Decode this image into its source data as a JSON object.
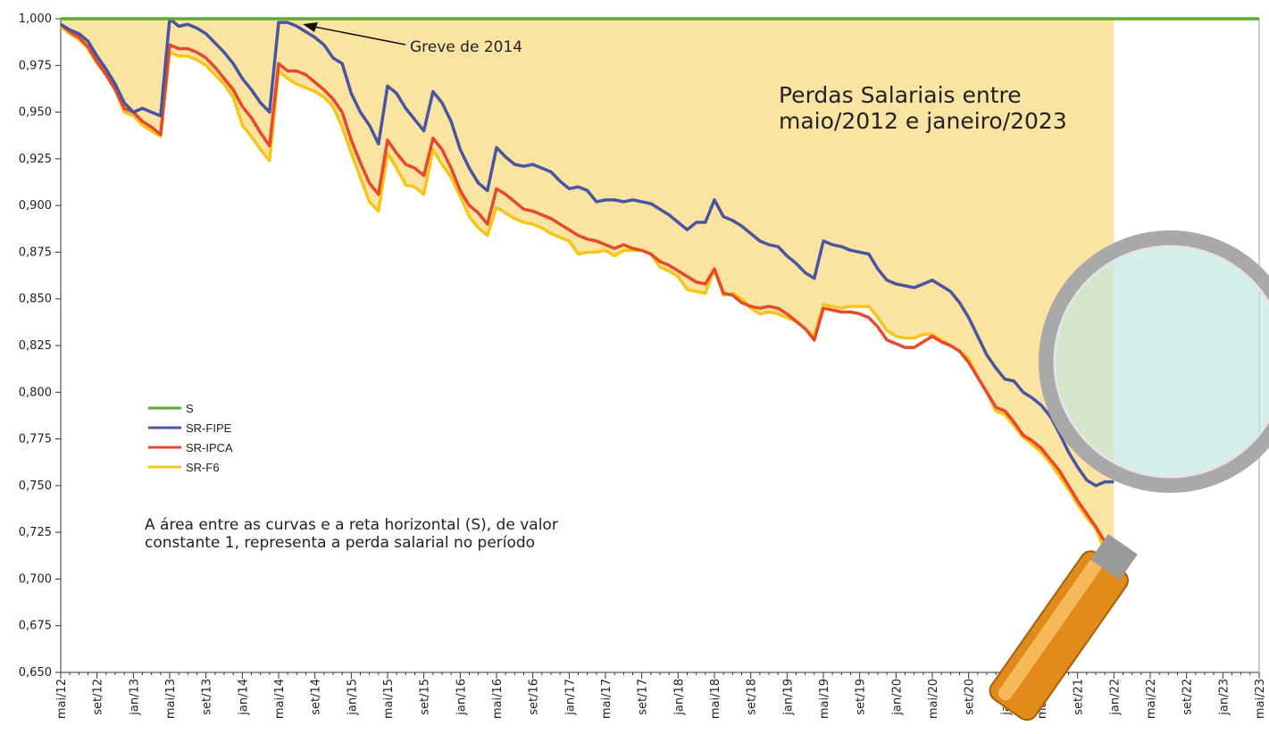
{
  "chart_data": {
    "type": "line",
    "title": [
      "Perdas Salariais entre",
      "maio/2012 e janeiro/2023"
    ],
    "annotations": [
      "Greve de 2014"
    ],
    "note": [
      "A área entre as curvas e a reta horizontal (S), de valor",
      "constante 1, representa a perda salarial no período"
    ],
    "legend": "middle-left",
    "fill_color": "#fbe3a2",
    "categories": [
      "mai/12",
      null,
      null,
      null,
      "set/12",
      null,
      null,
      null,
      "jan/13",
      null,
      null,
      null,
      "mai/13",
      null,
      null,
      null,
      "set/13",
      null,
      null,
      null,
      "jan/14",
      null,
      null,
      null,
      "mai/14",
      null,
      null,
      null,
      "set/14",
      null,
      null,
      null,
      "jan/15",
      null,
      null,
      null,
      "mai/15",
      null,
      null,
      null,
      "set/15",
      null,
      null,
      null,
      "jan/16",
      null,
      null,
      null,
      "mai/16",
      null,
      null,
      null,
      "set/16",
      null,
      null,
      null,
      "jan/17",
      null,
      null,
      null,
      "mai/17",
      null,
      null,
      null,
      "set/17",
      null,
      null,
      null,
      "jan/18",
      null,
      null,
      null,
      "mai/18",
      null,
      null,
      null,
      "set/18",
      null,
      null,
      null,
      "jan/19",
      null,
      null,
      null,
      "mai/19",
      null,
      null,
      null,
      "set/19",
      null,
      null,
      null,
      "jan/20",
      null,
      null,
      null,
      "mai/20",
      null,
      null,
      null,
      "set/20",
      null,
      null,
      null,
      "jan/21",
      null,
      null,
      null,
      "mai/21",
      null,
      null,
      null,
      "set/21",
      null,
      null,
      null,
      "jan/22",
      null,
      null,
      null,
      "mai/22",
      null,
      null,
      null,
      "set/22",
      null,
      null,
      null,
      "jan/23",
      null,
      null,
      null,
      "mai/23"
    ],
    "ylim": [
      0.65,
      1.0
    ],
    "yticks": [
      {
        "value": 0.65,
        "label": "0,650"
      },
      {
        "value": 0.675,
        "label": "0,675"
      },
      {
        "value": 0.7,
        "label": "0,700"
      },
      {
        "value": 0.725,
        "label": "0,725"
      },
      {
        "value": 0.75,
        "label": "0,750"
      },
      {
        "value": 0.775,
        "label": "0,775"
      },
      {
        "value": 0.8,
        "label": "0,800"
      },
      {
        "value": 0.825,
        "label": "0,825"
      },
      {
        "value": 0.85,
        "label": "0,850"
      },
      {
        "value": 0.875,
        "label": "0,875"
      },
      {
        "value": 0.9,
        "label": "0,900"
      },
      {
        "value": 0.925,
        "label": "0,925"
      },
      {
        "value": 0.95,
        "label": "0,950"
      },
      {
        "value": 0.975,
        "label": "0,975"
      },
      {
        "value": 1.0,
        "label": "1,000"
      }
    ],
    "series": [
      {
        "name": "S",
        "color": "#5aab2e",
        "values": [
          1,
          1,
          1,
          1,
          1,
          1,
          1,
          1,
          1,
          1,
          1,
          1,
          1,
          1,
          1,
          1,
          1,
          1,
          1,
          1,
          1,
          1,
          1,
          1,
          1,
          1,
          1,
          1,
          1,
          1,
          1,
          1,
          1,
          1,
          1,
          1,
          1,
          1,
          1,
          1,
          1,
          1,
          1,
          1,
          1,
          1,
          1,
          1,
          1,
          1,
          1,
          1,
          1,
          1,
          1,
          1,
          1,
          1,
          1,
          1,
          1,
          1,
          1,
          1,
          1,
          1,
          1,
          1,
          1,
          1,
          1,
          1,
          1,
          1,
          1,
          1,
          1,
          1,
          1,
          1,
          1,
          1,
          1,
          1,
          1,
          1,
          1,
          1,
          1,
          1,
          1,
          1,
          1,
          1,
          1,
          1,
          1,
          1,
          1,
          1,
          1,
          1,
          1,
          1,
          1,
          1,
          1,
          1,
          1,
          1,
          1,
          1,
          1,
          1,
          1,
          1,
          1,
          1,
          1,
          1,
          1,
          1,
          1,
          1,
          1,
          1,
          1,
          1,
          1,
          1,
          1,
          1,
          1
        ]
      },
      {
        "name": "SR-FIPE",
        "color": "#4a55a2",
        "values": [
          0.997,
          0.994,
          0.992,
          0.988,
          0.98,
          0.973,
          0.965,
          0.955,
          0.95,
          0.952,
          0.95,
          0.948,
          1.0,
          0.996,
          0.997,
          0.995,
          0.992,
          0.987,
          0.982,
          0.976,
          0.968,
          0.962,
          0.955,
          0.95,
          0.998,
          0.998,
          0.996,
          0.993,
          0.99,
          0.986,
          0.979,
          0.976,
          0.96,
          0.95,
          0.943,
          0.933,
          0.964,
          0.96,
          0.952,
          0.946,
          0.94,
          0.961,
          0.955,
          0.945,
          0.93,
          0.92,
          0.912,
          0.908,
          0.931,
          0.926,
          0.922,
          0.921,
          0.922,
          0.92,
          0.918,
          0.913,
          0.909,
          0.91,
          0.908,
          0.902,
          0.903,
          0.903,
          0.902,
          0.903,
          0.902,
          0.901,
          0.898,
          0.895,
          0.891,
          0.887,
          0.891,
          0.891,
          0.903,
          0.894,
          0.892,
          0.889,
          0.885,
          0.881,
          0.879,
          0.878,
          0.873,
          0.869,
          0.864,
          0.861,
          0.881,
          0.879,
          0.878,
          0.876,
          0.875,
          0.874,
          0.866,
          0.86,
          0.858,
          0.857,
          0.856,
          0.858,
          0.86,
          0.857,
          0.854,
          0.848,
          0.84,
          0.83,
          0.82,
          0.813,
          0.807,
          0.806,
          0.8,
          0.797,
          0.793,
          0.787,
          0.778,
          0.768,
          0.76,
          0.753,
          0.75,
          0.752,
          0.752,
          null,
          null,
          null,
          null,
          null,
          null,
          null,
          null,
          null,
          null,
          null,
          null,
          null,
          null,
          null,
          null
        ]
      },
      {
        "name": "SR-IPCA",
        "color": "#e8482b",
        "values": [
          0.997,
          0.993,
          0.99,
          0.985,
          0.977,
          0.97,
          0.962,
          0.952,
          0.95,
          0.945,
          0.942,
          0.938,
          0.986,
          0.984,
          0.984,
          0.982,
          0.979,
          0.974,
          0.968,
          0.962,
          0.953,
          0.947,
          0.939,
          0.932,
          0.976,
          0.972,
          0.972,
          0.97,
          0.966,
          0.962,
          0.957,
          0.95,
          0.935,
          0.923,
          0.912,
          0.906,
          0.935,
          0.928,
          0.922,
          0.92,
          0.916,
          0.936,
          0.93,
          0.92,
          0.908,
          0.9,
          0.896,
          0.89,
          0.909,
          0.906,
          0.902,
          0.898,
          0.897,
          0.895,
          0.893,
          0.89,
          0.887,
          0.884,
          0.882,
          0.881,
          0.879,
          0.877,
          0.879,
          0.877,
          0.876,
          0.874,
          0.87,
          0.868,
          0.865,
          0.862,
          0.859,
          0.858,
          0.866,
          0.853,
          0.852,
          0.848,
          0.846,
          0.845,
          0.846,
          0.845,
          0.842,
          0.838,
          0.834,
          0.828,
          0.845,
          0.844,
          0.843,
          0.843,
          0.842,
          0.84,
          0.835,
          0.828,
          0.826,
          0.824,
          0.824,
          0.827,
          0.83,
          0.827,
          0.825,
          0.822,
          0.816,
          0.808,
          0.8,
          0.792,
          0.79,
          0.784,
          0.777,
          0.774,
          0.77,
          0.764,
          0.758,
          0.75,
          0.742,
          0.735,
          0.728,
          0.72,
          0.715,
          null,
          null,
          null,
          null,
          null,
          null,
          null,
          null,
          null,
          null,
          null,
          null,
          null,
          null,
          null,
          null
        ]
      },
      {
        "name": "SR-F6",
        "color": "#f5c518",
        "values": [
          0.996,
          0.992,
          0.989,
          0.984,
          0.976,
          0.97,
          0.962,
          0.95,
          0.948,
          0.943,
          0.94,
          0.937,
          0.982,
          0.98,
          0.98,
          0.978,
          0.975,
          0.97,
          0.965,
          0.958,
          0.943,
          0.937,
          0.93,
          0.924,
          0.972,
          0.968,
          0.965,
          0.963,
          0.961,
          0.958,
          0.953,
          0.942,
          0.928,
          0.915,
          0.902,
          0.897,
          0.928,
          0.92,
          0.911,
          0.91,
          0.906,
          0.93,
          0.922,
          0.915,
          0.905,
          0.894,
          0.888,
          0.884,
          0.899,
          0.896,
          0.893,
          0.891,
          0.89,
          0.888,
          0.885,
          0.883,
          0.881,
          0.874,
          0.875,
          0.875,
          0.876,
          0.873,
          0.876,
          0.876,
          0.876,
          0.874,
          0.867,
          0.865,
          0.862,
          0.855,
          0.854,
          0.853,
          0.866,
          0.852,
          0.853,
          0.85,
          0.845,
          0.842,
          0.843,
          0.842,
          0.84,
          0.838,
          0.834,
          0.83,
          0.847,
          0.846,
          0.845,
          0.846,
          0.846,
          0.846,
          0.84,
          0.833,
          0.83,
          0.829,
          0.829,
          0.831,
          0.831,
          0.828,
          0.825,
          0.822,
          0.818,
          0.808,
          0.8,
          0.79,
          0.788,
          0.782,
          0.776,
          0.772,
          0.768,
          0.762,
          0.755,
          0.748,
          0.74,
          0.733,
          0.727,
          0.715,
          0.706,
          null,
          null,
          null,
          null,
          null,
          null,
          null,
          null,
          null,
          null,
          null,
          null,
          null,
          null,
          null,
          null
        ]
      }
    ]
  }
}
